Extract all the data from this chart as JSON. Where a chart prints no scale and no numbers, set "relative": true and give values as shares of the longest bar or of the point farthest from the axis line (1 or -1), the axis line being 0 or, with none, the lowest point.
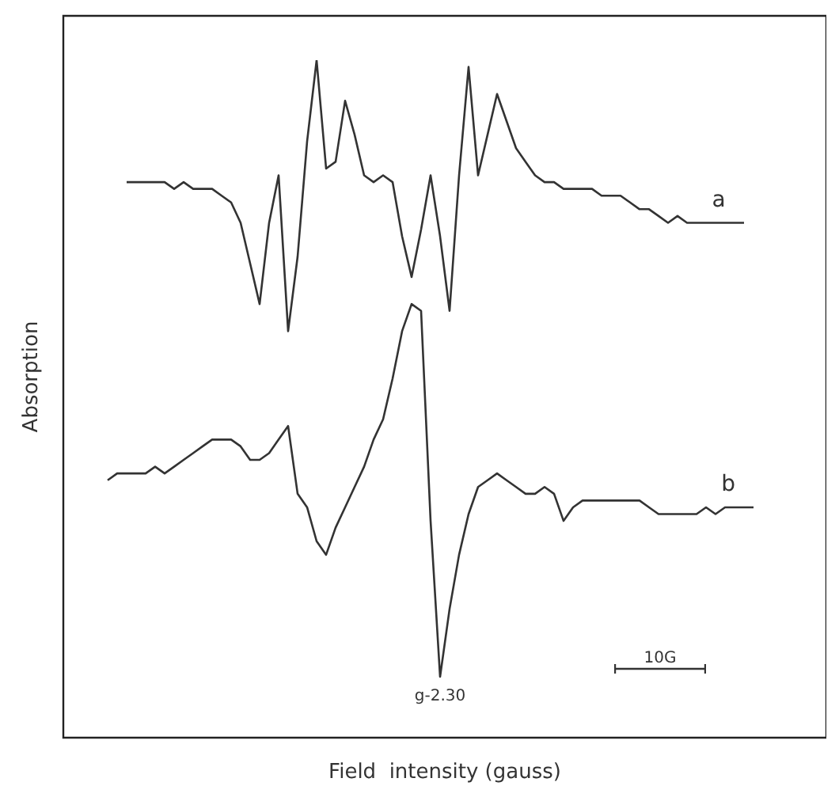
{
  "chart_data": {
    "type": "line",
    "relative": true,
    "xlabel": "Field  intensity (gauss)",
    "ylabel": "Absorption",
    "marker": "none",
    "legend": false,
    "categories": [
      null,
      null,
      null,
      null,
      null,
      null,
      null,
      null,
      null,
      null,
      null,
      null,
      null,
      null,
      null,
      null,
      null,
      null,
      null,
      null,
      null,
      null,
      null,
      null,
      null,
      null,
      null,
      null,
      null,
      null,
      null,
      null,
      null,
      null,
      null,
      null,
      null,
      null,
      null,
      null,
      null,
      null,
      null,
      null,
      null,
      null,
      null,
      null,
      null,
      null,
      null,
      null,
      null,
      null,
      null,
      null,
      null,
      null,
      null,
      null,
      null,
      null,
      null,
      null,
      null,
      null,
      null,
      null,
      null
    ],
    "series": [
      {
        "name": "a",
        "color": "#333333",
        "values": [
          null,
          null,
          0.82,
          0.82,
          0.82,
          0.82,
          0.82,
          0.81,
          0.82,
          0.81,
          0.81,
          0.81,
          0.8,
          0.79,
          0.76,
          0.7,
          0.64,
          0.76,
          0.83,
          0.6,
          0.71,
          0.88,
          1.0,
          0.84,
          0.85,
          0.94,
          0.89,
          0.83,
          0.82,
          0.83,
          0.82,
          0.74,
          0.68,
          0.75,
          0.83,
          0.74,
          0.63,
          0.83,
          0.99,
          0.83,
          0.89,
          0.95,
          0.91,
          0.87,
          0.85,
          0.83,
          0.82,
          0.82,
          0.81,
          0.81,
          0.81,
          0.81,
          0.8,
          0.8,
          0.8,
          0.79,
          0.78,
          0.78,
          0.77,
          0.76,
          0.77,
          0.76,
          0.76,
          0.76,
          0.76,
          0.76,
          0.76,
          0.76,
          null
        ]
      },
      {
        "name": "b",
        "color": "#333333",
        "values": [
          0.38,
          0.39,
          0.39,
          0.39,
          0.39,
          0.4,
          0.39,
          0.4,
          0.41,
          0.42,
          0.43,
          0.44,
          0.44,
          0.44,
          0.43,
          0.41,
          0.41,
          0.42,
          0.44,
          0.46,
          0.36,
          0.34,
          0.29,
          0.27,
          0.31,
          0.34,
          0.37,
          0.4,
          0.44,
          0.47,
          0.53,
          0.6,
          0.64,
          0.63,
          0.32,
          0.09,
          0.19,
          0.27,
          0.33,
          0.37,
          0.38,
          0.39,
          0.38,
          0.37,
          0.36,
          0.36,
          0.37,
          0.36,
          0.32,
          0.34,
          0.35,
          0.35,
          0.35,
          0.35,
          0.35,
          0.35,
          0.35,
          0.34,
          0.33,
          0.33,
          0.33,
          0.33,
          0.33,
          0.34,
          0.33,
          0.34,
          0.34,
          0.34,
          0.34
        ]
      }
    ],
    "annotations": [
      "g-2.30",
      "10G"
    ]
  }
}
